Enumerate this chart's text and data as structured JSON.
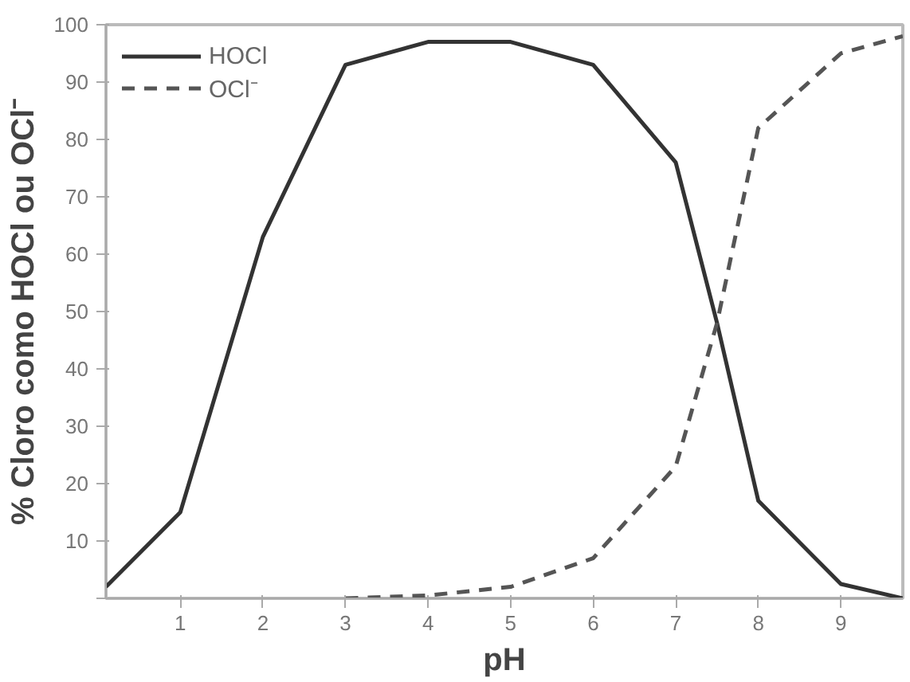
{
  "chart_data": {
    "type": "line",
    "xlabel": "pH",
    "ylabel": "% Cloro como HOCl ou OCl⁻",
    "xlim": [
      0.1,
      9.75
    ],
    "ylim": [
      0,
      100
    ],
    "xticks": [
      1,
      2,
      3,
      4,
      5,
      6,
      7,
      8,
      9
    ],
    "yticks": [
      {
        "value": 0,
        "label": null
      },
      10,
      20,
      30,
      40,
      50,
      60,
      70,
      80,
      90,
      100
    ],
    "legend": "top left",
    "grid": false,
    "series": [
      {
        "name": "HOCl",
        "color": "#333333",
        "line_style": "solid",
        "x": [
          0.1,
          1,
          2,
          3,
          4,
          5,
          6,
          7,
          7.5,
          8,
          9,
          9.75
        ],
        "values": [
          2,
          15,
          63,
          93,
          97,
          97,
          93,
          76,
          48,
          17,
          2.5,
          0
        ]
      },
      {
        "name": "OCl⁻",
        "color": "#555555",
        "line_style": "dashed",
        "x": [
          3,
          4,
          5,
          6,
          7,
          7.5,
          8,
          9,
          9.75
        ],
        "values": [
          0,
          0.5,
          2,
          7,
          23,
          48,
          82,
          95,
          98
        ]
      }
    ]
  }
}
